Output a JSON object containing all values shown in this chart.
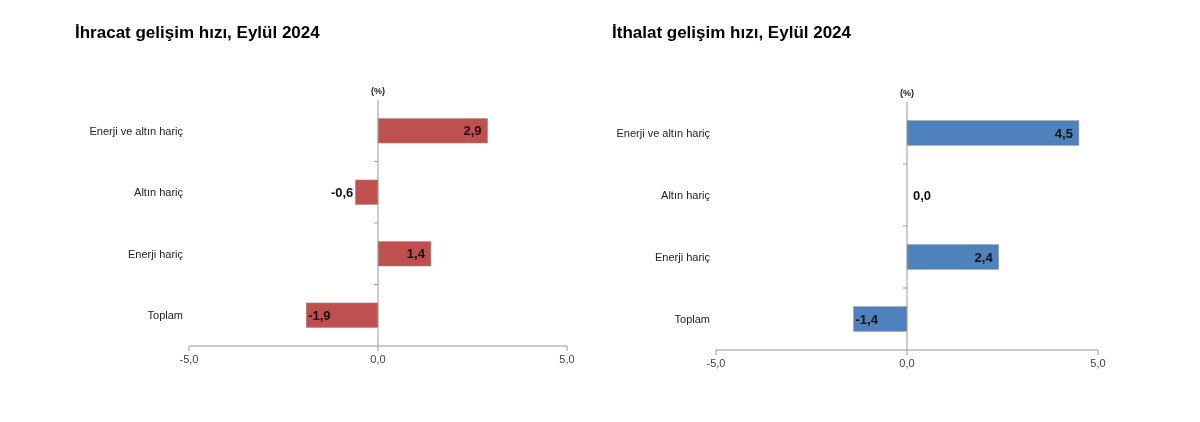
{
  "chart_data": [
    {
      "type": "bar",
      "orientation": "horizontal",
      "title": "İhracat gelişim hızı, Eylül 2024",
      "xlabel": "(%)",
      "categories": [
        "Enerji ve altın hariç",
        "Altın hariç",
        "Enerji hariç",
        "Toplam"
      ],
      "series": [
        {
          "color": "#c0504d",
          "values": [
            2.9,
            -0.6,
            1.4,
            -1.9
          ],
          "value_labels": [
            "2,9",
            "-0,6",
            "1,4",
            "-1,9"
          ]
        }
      ],
      "xlim": [
        -5,
        5
      ],
      "xticks": [
        {
          "value": -5,
          "label": "-5,0"
        },
        {
          "value": 0,
          "label": "0,0"
        },
        {
          "value": 5,
          "label": "5,0"
        }
      ]
    },
    {
      "type": "bar",
      "orientation": "horizontal",
      "title": "İthalat gelişim hızı, Eylül 2024",
      "xlabel": "(%)",
      "categories": [
        "Enerji ve altın hariç",
        "Altın hariç",
        "Enerji hariç",
        "Toplam"
      ],
      "series": [
        {
          "color": "#4f81bd",
          "values": [
            4.5,
            0.0,
            2.4,
            -1.4
          ],
          "value_labels": [
            "4,5",
            "0,0",
            "2,4",
            "-1,4"
          ]
        }
      ],
      "xlim": [
        -5,
        5
      ],
      "xticks": [
        {
          "value": -5,
          "label": "-5,0"
        },
        {
          "value": 0,
          "label": "0,0"
        },
        {
          "value": 5,
          "label": "5,0"
        }
      ]
    }
  ]
}
